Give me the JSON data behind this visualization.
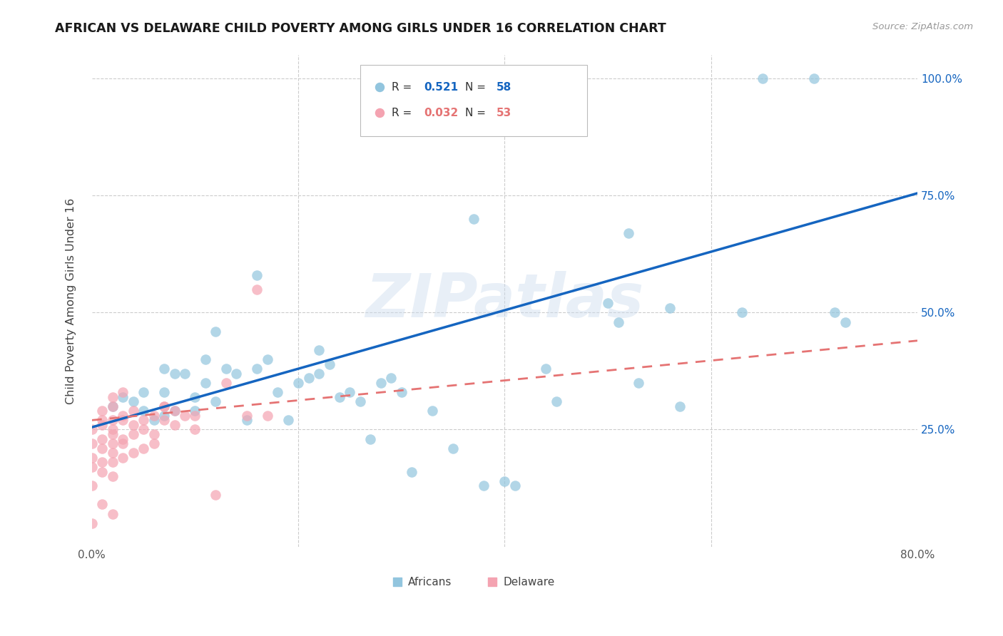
{
  "title": "AFRICAN VS DELAWARE CHILD POVERTY AMONG GIRLS UNDER 16 CORRELATION CHART",
  "source": "Source: ZipAtlas.com",
  "ylabel": "Child Poverty Among Girls Under 16",
  "watermark": "ZIPatlas",
  "xlim": [
    0.0,
    0.8
  ],
  "ylim": [
    0.0,
    1.05
  ],
  "xticks": [
    0.0,
    0.2,
    0.4,
    0.6,
    0.8
  ],
  "xticklabels": [
    "0.0%",
    "",
    "",
    "",
    "80.0%"
  ],
  "yticks": [
    0.0,
    0.25,
    0.5,
    0.75,
    1.0
  ],
  "right_yticklabels": [
    "",
    "25.0%",
    "50.0%",
    "75.0%",
    "100.0%"
  ],
  "blue_scatter": "#92c5de",
  "pink_scatter": "#f4a3b1",
  "blue_line": "#1565c0",
  "pink_line": "#e57373",
  "grid_color": "#cccccc",
  "legend_r1": "0.521",
  "legend_n1": "58",
  "legend_r2": "0.032",
  "legend_n2": "53",
  "africans_x": [
    0.02,
    0.03,
    0.04,
    0.05,
    0.05,
    0.06,
    0.07,
    0.07,
    0.07,
    0.08,
    0.09,
    0.1,
    0.1,
    0.11,
    0.11,
    0.12,
    0.13,
    0.14,
    0.15,
    0.16,
    0.16,
    0.17,
    0.18,
    0.19,
    0.2,
    0.21,
    0.22,
    0.22,
    0.23,
    0.24,
    0.25,
    0.26,
    0.27,
    0.28,
    0.29,
    0.3,
    0.31,
    0.33,
    0.35,
    0.37,
    0.38,
    0.4,
    0.41,
    0.44,
    0.45,
    0.5,
    0.51,
    0.52,
    0.53,
    0.56,
    0.57,
    0.63,
    0.65,
    0.7,
    0.72,
    0.73,
    0.08,
    0.12
  ],
  "africans_y": [
    0.3,
    0.32,
    0.31,
    0.29,
    0.33,
    0.27,
    0.28,
    0.33,
    0.38,
    0.29,
    0.37,
    0.29,
    0.32,
    0.35,
    0.4,
    0.31,
    0.38,
    0.37,
    0.27,
    0.58,
    0.38,
    0.4,
    0.33,
    0.27,
    0.35,
    0.36,
    0.37,
    0.42,
    0.39,
    0.32,
    0.33,
    0.31,
    0.23,
    0.35,
    0.36,
    0.33,
    0.16,
    0.29,
    0.21,
    0.7,
    0.13,
    0.14,
    0.13,
    0.38,
    0.31,
    0.52,
    0.48,
    0.67,
    0.35,
    0.51,
    0.3,
    0.5,
    1.0,
    1.0,
    0.5,
    0.48,
    0.37,
    0.46
  ],
  "delaware_x": [
    0.0,
    0.0,
    0.0,
    0.0,
    0.0,
    0.01,
    0.01,
    0.01,
    0.01,
    0.01,
    0.01,
    0.01,
    0.02,
    0.02,
    0.02,
    0.02,
    0.02,
    0.02,
    0.02,
    0.02,
    0.02,
    0.03,
    0.03,
    0.03,
    0.03,
    0.03,
    0.03,
    0.04,
    0.04,
    0.04,
    0.04,
    0.05,
    0.05,
    0.05,
    0.06,
    0.06,
    0.06,
    0.07,
    0.07,
    0.08,
    0.08,
    0.09,
    0.1,
    0.1,
    0.12,
    0.13,
    0.15,
    0.16,
    0.17,
    0.07,
    0.0,
    0.01,
    0.02
  ],
  "delaware_y": [
    0.25,
    0.17,
    0.22,
    0.19,
    0.13,
    0.26,
    0.21,
    0.18,
    0.23,
    0.27,
    0.16,
    0.29,
    0.24,
    0.22,
    0.18,
    0.27,
    0.3,
    0.2,
    0.15,
    0.25,
    0.32,
    0.19,
    0.23,
    0.28,
    0.22,
    0.27,
    0.33,
    0.2,
    0.26,
    0.24,
    0.29,
    0.25,
    0.21,
    0.27,
    0.24,
    0.28,
    0.22,
    0.27,
    0.3,
    0.26,
    0.29,
    0.28,
    0.25,
    0.28,
    0.11,
    0.35,
    0.28,
    0.55,
    0.28,
    0.3,
    0.05,
    0.09,
    0.07
  ],
  "blue_trendline_x0": 0.0,
  "blue_trendline_y0": 0.255,
  "blue_trendline_x1": 0.8,
  "blue_trendline_y1": 0.755,
  "pink_trendline_x0": 0.0,
  "pink_trendline_y0": 0.27,
  "pink_trendline_x1": 0.8,
  "pink_trendline_y1": 0.44
}
